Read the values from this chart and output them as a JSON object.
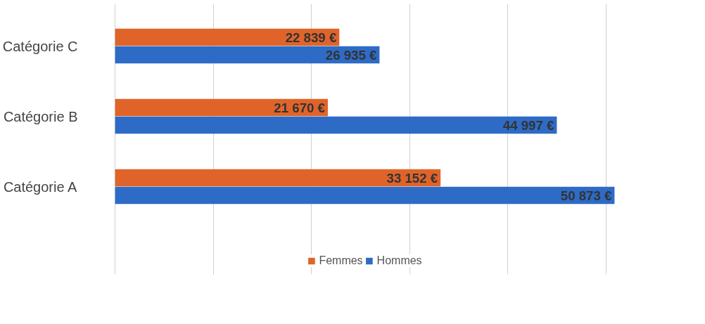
{
  "chart_data": {
    "type": "bar",
    "orientation": "horizontal",
    "categories": [
      "Catégorie C",
      "Catégorie B",
      "Catégorie A"
    ],
    "series": [
      {
        "name": "Femmes",
        "color": "#e0642a",
        "values": [
          22839,
          21670,
          33152
        ],
        "value_labels": [
          "22 839 €",
          "21 670 €",
          "33 152 €"
        ]
      },
      {
        "name": "Hommes",
        "color": "#2e6bc6",
        "values": [
          26935,
          44997,
          50873
        ],
        "value_labels": [
          "26 935 €",
          "44 997 €",
          "50 873 €"
        ]
      }
    ],
    "grid": "x",
    "legend": "bottom",
    "tick_labels": "y"
  }
}
